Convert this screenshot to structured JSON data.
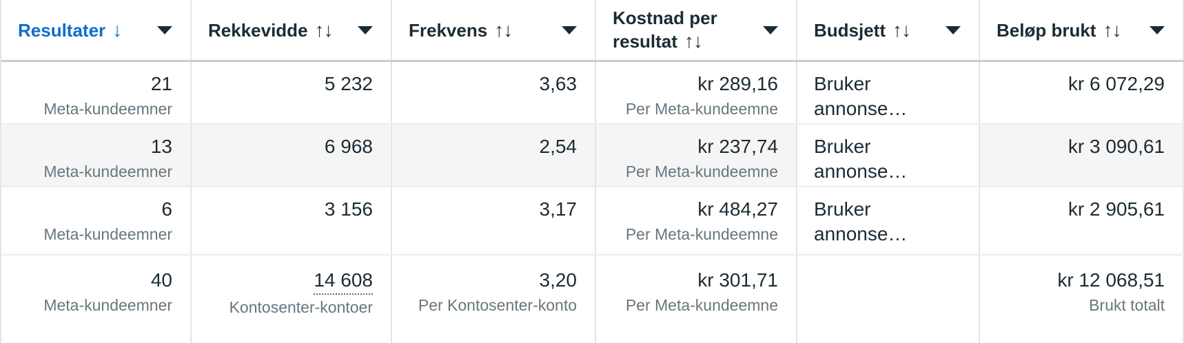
{
  "colors": {
    "accent_blue": "#0e6dcc",
    "text_primary": "#1c2b33",
    "text_secondary": "#68767e",
    "row_highlight_bg": "#f5f5f5",
    "divider": "#e3e5e8",
    "header_divider": "#c8ccd0"
  },
  "header": {
    "columns": [
      {
        "label": "Resultater",
        "sort_indicator": "↓",
        "sort_state": "sorted-descending"
      },
      {
        "label": "Rekkevidde",
        "sort_indicator": "↑↓",
        "sort_state": "unsorted"
      },
      {
        "label": "Frekvens",
        "sort_indicator": "↑↓",
        "sort_state": "unsorted"
      },
      {
        "label": "Kostnad per resultat",
        "sort_indicator": "↑↓",
        "sort_state": "unsorted"
      },
      {
        "label": "Budsjett",
        "sort_indicator": "↑↓",
        "sort_state": "unsorted"
      },
      {
        "label": "Beløp brukt",
        "sort_indicator": "↑↓",
        "sort_state": "unsorted"
      }
    ]
  },
  "rows": [
    {
      "resultater": {
        "value": "21",
        "sub": "Meta-kundeemner"
      },
      "rekkevidde": {
        "value": "5 232"
      },
      "frekvens": {
        "value": "3,63"
      },
      "kostnad": {
        "value": "kr 289,16",
        "sub": "Per Meta-kundeemne"
      },
      "budsjett": {
        "value": "Bruker annonse…"
      },
      "belop": {
        "value": "kr 6 072,29"
      }
    },
    {
      "highlighted": true,
      "resultater": {
        "value": "13",
        "sub": "Meta-kundeemner"
      },
      "rekkevidde": {
        "value": "6 968"
      },
      "frekvens": {
        "value": "2,54"
      },
      "kostnad": {
        "value": "kr 237,74",
        "sub": "Per Meta-kundeemne"
      },
      "budsjett": {
        "value": "Bruker annonse…"
      },
      "belop": {
        "value": "kr 3 090,61"
      }
    },
    {
      "resultater": {
        "value": "6",
        "sub": "Meta-kundeemner"
      },
      "rekkevidde": {
        "value": "3 156"
      },
      "frekvens": {
        "value": "3,17"
      },
      "kostnad": {
        "value": "kr 484,27",
        "sub": "Per Meta-kundeemne"
      },
      "budsjett": {
        "value": "Bruker annonse…"
      },
      "belop": {
        "value": "kr 2 905,61"
      }
    },
    {
      "is_totals": true,
      "resultater": {
        "value": "40",
        "sub": "Meta-kundeemner"
      },
      "rekkevidde": {
        "value": "14 608",
        "sub": "Kontosenter-kontoer",
        "tooltip_underline": true
      },
      "frekvens": {
        "value": "3,20",
        "sub": "Per Kontosenter-konto"
      },
      "kostnad": {
        "value": "kr 301,71",
        "sub": "Per Meta-kundeemne"
      },
      "budsjett": {
        "value": ""
      },
      "belop": {
        "value": "kr 12 068,51",
        "sub": "Brukt totalt"
      }
    }
  ]
}
